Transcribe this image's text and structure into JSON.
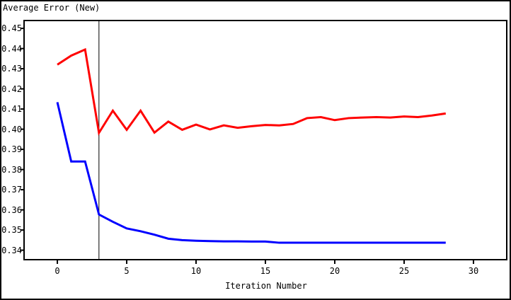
{
  "window": {
    "background": "#ffffff",
    "border_color": "#000000"
  },
  "chart_data": {
    "type": "line",
    "title": "Average Error (New)",
    "xlabel": "Iteration Number",
    "ylabel": "",
    "grid": false,
    "legend": "none",
    "frame_color": "#000000",
    "reference_line_x": 3,
    "xlim": [
      -2.4,
      32.4
    ],
    "ylim": [
      0.3353,
      0.4539
    ],
    "xticks": [
      0,
      5,
      10,
      15,
      20,
      25,
      30
    ],
    "xtick_labels": [
      "0",
      "5",
      "10",
      "15",
      "20",
      "25",
      "30"
    ],
    "ytick_values": [
      0.45,
      0.44,
      0.43,
      0.42,
      0.41,
      0.4,
      0.39,
      0.38,
      0.37,
      0.36,
      0.35,
      0.34
    ],
    "ytick_labels": [
      "0.45",
      "0.44",
      "0.43",
      "0.42",
      "0.41",
      "0.40",
      "0.39",
      "0.38",
      "0.37",
      "0.36",
      "0.35",
      "0.34"
    ],
    "x": [
      0,
      1,
      2,
      3,
      4,
      5,
      6,
      7,
      8,
      9,
      10,
      11,
      12,
      13,
      14,
      15,
      16,
      17,
      18,
      19,
      20,
      21,
      22,
      23,
      24,
      25,
      26,
      27,
      28
    ],
    "series": [
      {
        "name": "new-error-series",
        "color": "#ff0000",
        "values": [
          0.432,
          0.4365,
          0.4395,
          0.3982,
          0.4092,
          0.3997,
          0.4092,
          0.3983,
          0.4038,
          0.3997,
          0.4023,
          0.3999,
          0.4019,
          0.4007,
          0.4015,
          0.4021,
          0.4019,
          0.4026,
          0.4055,
          0.406,
          0.4045,
          0.4055,
          0.4058,
          0.406,
          0.4058,
          0.4063,
          0.406,
          0.4068,
          0.4078
        ]
      },
      {
        "name": "training-error-series",
        "color": "#0000ff",
        "values": [
          0.4134,
          0.384,
          0.384,
          0.3577,
          0.3541,
          0.3508,
          0.3494,
          0.3477,
          0.3457,
          0.345,
          0.3447,
          0.3445,
          0.3444,
          0.3444,
          0.3443,
          0.3443,
          0.3437,
          0.3437,
          0.3437,
          0.3437,
          0.3437,
          0.3437,
          0.3437,
          0.3437,
          0.3437,
          0.3437,
          0.3437,
          0.3437,
          0.3437
        ]
      }
    ]
  }
}
